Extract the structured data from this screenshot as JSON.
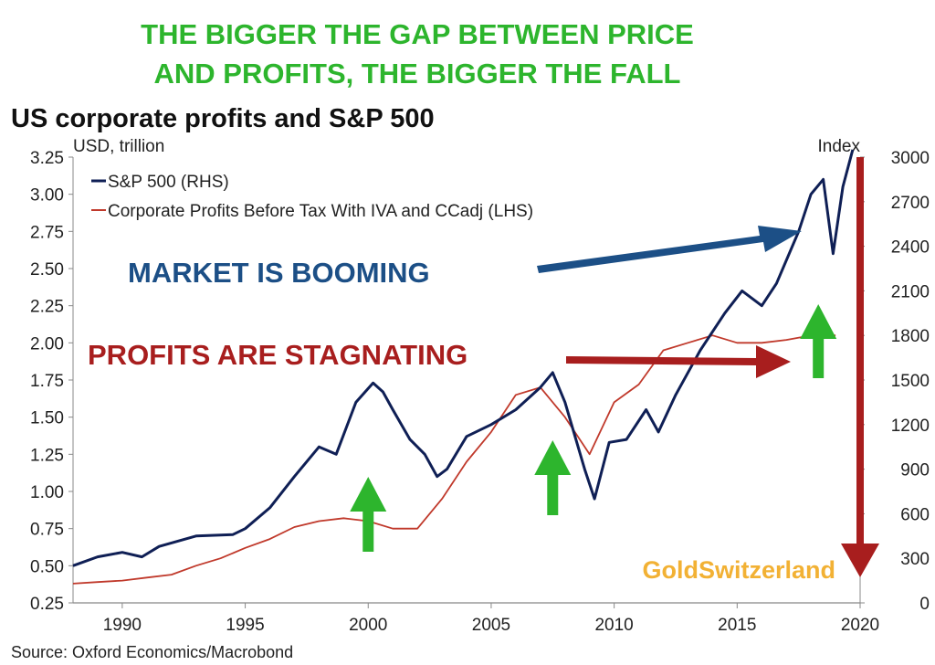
{
  "headline": [
    "THE BIGGER THE GAP BETWEEN PRICE",
    "AND PROFITS, THE BIGGER THE FALL"
  ],
  "colors": {
    "headline": "#2db52d",
    "sp500": "#0f1f55",
    "profits": "#c0392b",
    "annotation_blue": "#1c4f86",
    "annotation_red": "#a81e1e",
    "green_arrow": "#2db52d",
    "brand": "#f2b134"
  },
  "annotations": {
    "market": "MARKET IS BOOMING",
    "profits": "PROFITS ARE STAGNATING",
    "green_arrow_years": [
      2000,
      2007.5,
      2018.3
    ]
  },
  "brand": "GoldSwitzerland",
  "source": "Source: Oxford Economics/Macrobond",
  "chart_data": {
    "type": "line",
    "title": "US corporate profits and S&P 500",
    "left_unit": "USD, trillion",
    "right_unit": "Index",
    "xlim": [
      1988,
      2020
    ],
    "ylim_left": [
      0.25,
      3.25
    ],
    "ylim_right": [
      0,
      3000
    ],
    "x_ticks": [
      "1990",
      "1995",
      "2000",
      "2005",
      "2010",
      "2015",
      "2020"
    ],
    "y_left_ticks": [
      "0.25",
      "0.50",
      "0.75",
      "1.00",
      "1.25",
      "1.50",
      "1.75",
      "2.00",
      "2.25",
      "2.50",
      "2.75",
      "3.00",
      "3.25"
    ],
    "y_right_ticks": [
      "0",
      "300",
      "600",
      "900",
      "1200",
      "1500",
      "1800",
      "2100",
      "2400",
      "2700",
      "3000"
    ],
    "legend_position": "top-left",
    "series": [
      {
        "name": "S&P 500 (RHS)",
        "axis": "right",
        "points": [
          [
            1988,
            250
          ],
          [
            1989,
            310
          ],
          [
            1990,
            340
          ],
          [
            1990.8,
            310
          ],
          [
            1991.5,
            380
          ],
          [
            1993,
            450
          ],
          [
            1994.5,
            460
          ],
          [
            1995,
            500
          ],
          [
            1996,
            640
          ],
          [
            1997,
            850
          ],
          [
            1998,
            1050
          ],
          [
            1998.7,
            1000
          ],
          [
            1999.5,
            1350
          ],
          [
            2000.2,
            1480
          ],
          [
            2000.6,
            1420
          ],
          [
            2001,
            1300
          ],
          [
            2001.7,
            1100
          ],
          [
            2002.3,
            1000
          ],
          [
            2002.8,
            850
          ],
          [
            2003.2,
            900
          ],
          [
            2004,
            1120
          ],
          [
            2005,
            1200
          ],
          [
            2006,
            1300
          ],
          [
            2007,
            1450
          ],
          [
            2007.5,
            1550
          ],
          [
            2008,
            1350
          ],
          [
            2008.8,
            900
          ],
          [
            2009.2,
            700
          ],
          [
            2009.8,
            1080
          ],
          [
            2010.5,
            1100
          ],
          [
            2011.3,
            1300
          ],
          [
            2011.8,
            1150
          ],
          [
            2012.5,
            1400
          ],
          [
            2013.5,
            1700
          ],
          [
            2014.5,
            1950
          ],
          [
            2015.2,
            2100
          ],
          [
            2016,
            2000
          ],
          [
            2016.6,
            2150
          ],
          [
            2017.5,
            2500
          ],
          [
            2018,
            2750
          ],
          [
            2018.5,
            2850
          ],
          [
            2018.9,
            2350
          ],
          [
            2019.3,
            2800
          ],
          [
            2019.7,
            3050
          ]
        ]
      },
      {
        "name": "Corporate Profits Before Tax With IVA and CCadj (LHS)",
        "axis": "left",
        "points": [
          [
            1988,
            0.38
          ],
          [
            1989,
            0.39
          ],
          [
            1990,
            0.4
          ],
          [
            1991,
            0.42
          ],
          [
            1992,
            0.44
          ],
          [
            1993,
            0.5
          ],
          [
            1994,
            0.55
          ],
          [
            1995,
            0.62
          ],
          [
            1996,
            0.68
          ],
          [
            1997,
            0.76
          ],
          [
            1998,
            0.8
          ],
          [
            1999,
            0.82
          ],
          [
            2000,
            0.8
          ],
          [
            2001,
            0.75
          ],
          [
            2002,
            0.75
          ],
          [
            2003,
            0.95
          ],
          [
            2004,
            1.2
          ],
          [
            2005,
            1.4
          ],
          [
            2006,
            1.65
          ],
          [
            2007,
            1.7
          ],
          [
            2008,
            1.5
          ],
          [
            2009,
            1.25
          ],
          [
            2010,
            1.6
          ],
          [
            2011,
            1.72
          ],
          [
            2012,
            1.95
          ],
          [
            2013,
            2.0
          ],
          [
            2014,
            2.05
          ],
          [
            2015,
            2.0
          ],
          [
            2016,
            2.0
          ],
          [
            2017,
            2.02
          ],
          [
            2018,
            2.05
          ],
          [
            2019,
            2.05
          ]
        ]
      }
    ]
  }
}
